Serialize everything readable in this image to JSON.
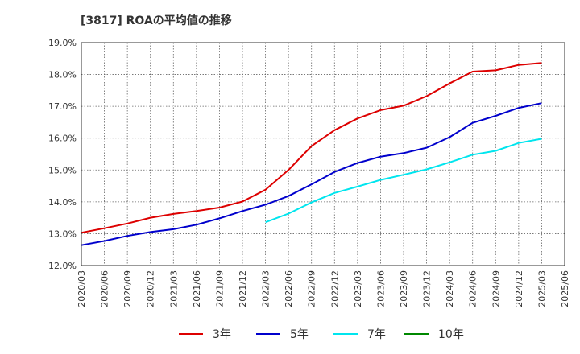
{
  "chart_data": {
    "type": "line",
    "title": "[3817]  ROAの平均値の推移",
    "xlabel": "",
    "ylabel": "",
    "x": [
      "2020/03",
      "2020/06",
      "2020/09",
      "2020/12",
      "2021/03",
      "2021/06",
      "2021/09",
      "2021/12",
      "2022/03",
      "2022/06",
      "2022/09",
      "2022/12",
      "2023/03",
      "2023/06",
      "2023/09",
      "2023/12",
      "2024/03",
      "2024/06",
      "2024/09",
      "2024/12",
      "2025/03",
      "2025/06"
    ],
    "ylim": [
      12.0,
      19.0
    ],
    "yticks": [
      "12.0%",
      "13.0%",
      "14.0%",
      "15.0%",
      "16.0%",
      "17.0%",
      "18.0%",
      "19.0%"
    ],
    "grid": true,
    "legend_position": "bottom",
    "series": [
      {
        "name": "3年",
        "color": "#dd0000",
        "values": [
          13.03,
          13.17,
          13.32,
          13.5,
          13.62,
          13.71,
          13.82,
          14.01,
          14.38,
          15.0,
          15.75,
          16.25,
          16.62,
          16.88,
          17.02,
          17.32,
          17.72,
          18.09,
          18.13,
          18.3,
          18.36,
          null
        ]
      },
      {
        "name": "5年",
        "color": "#0000cc",
        "values": [
          12.64,
          12.77,
          12.93,
          13.05,
          13.14,
          13.28,
          13.48,
          13.71,
          13.91,
          14.18,
          14.55,
          14.94,
          15.22,
          15.42,
          15.53,
          15.7,
          16.03,
          16.48,
          16.7,
          16.95,
          17.1,
          null
        ]
      },
      {
        "name": "7年",
        "color": "#00e5ee",
        "values": [
          null,
          null,
          null,
          null,
          null,
          null,
          null,
          null,
          13.36,
          13.63,
          13.98,
          14.28,
          14.48,
          14.69,
          14.85,
          15.02,
          15.24,
          15.48,
          15.6,
          15.85,
          15.98,
          null
        ]
      },
      {
        "name": "10年",
        "color": "#008800",
        "values": [
          null,
          null,
          null,
          null,
          null,
          null,
          null,
          null,
          null,
          null,
          null,
          null,
          null,
          null,
          null,
          null,
          null,
          null,
          null,
          null,
          null,
          null
        ]
      }
    ]
  }
}
